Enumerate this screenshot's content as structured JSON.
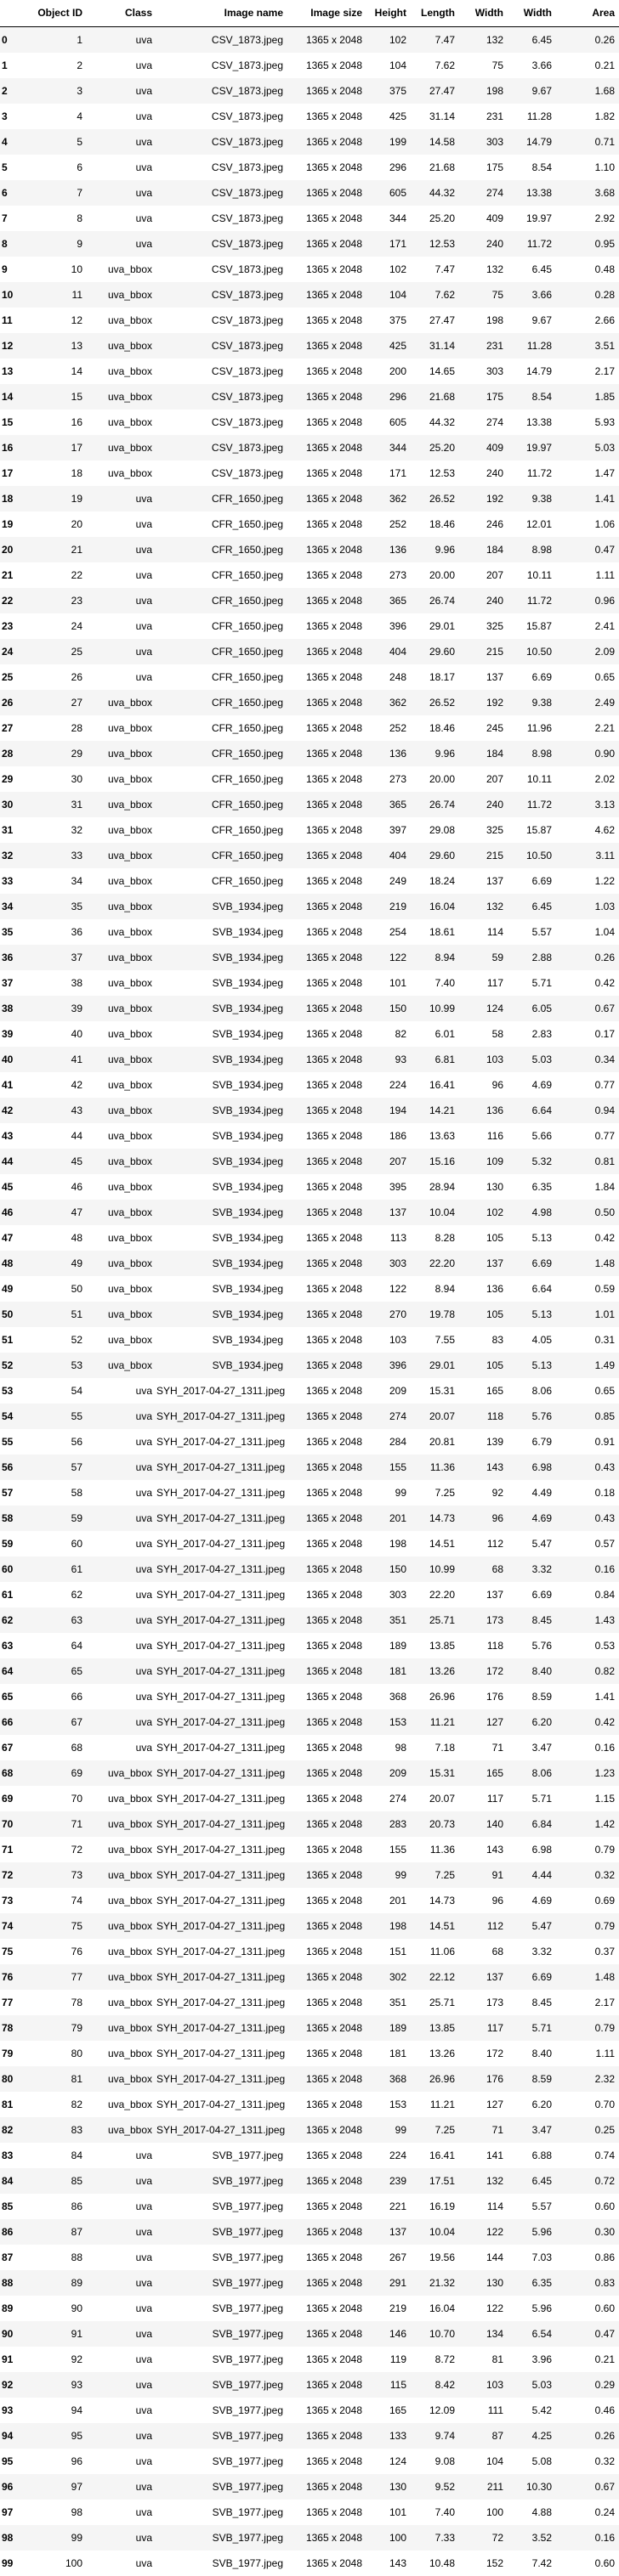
{
  "table": {
    "columns": [
      "",
      "Object ID",
      "Class",
      "Image name",
      "Image size",
      "Height",
      "Length",
      "Width",
      "Width",
      "Area"
    ],
    "rows": [
      [
        "0",
        "1",
        "uva",
        "CSV_1873.jpeg",
        "1365 x 2048",
        "102",
        "7.47",
        "132",
        "6.45",
        "0.26"
      ],
      [
        "1",
        "2",
        "uva",
        "CSV_1873.jpeg",
        "1365 x 2048",
        "104",
        "7.62",
        "75",
        "3.66",
        "0.21"
      ],
      [
        "2",
        "3",
        "uva",
        "CSV_1873.jpeg",
        "1365 x 2048",
        "375",
        "27.47",
        "198",
        "9.67",
        "1.68"
      ],
      [
        "3",
        "4",
        "uva",
        "CSV_1873.jpeg",
        "1365 x 2048",
        "425",
        "31.14",
        "231",
        "11.28",
        "1.82"
      ],
      [
        "4",
        "5",
        "uva",
        "CSV_1873.jpeg",
        "1365 x 2048",
        "199",
        "14.58",
        "303",
        "14.79",
        "0.71"
      ],
      [
        "5",
        "6",
        "uva",
        "CSV_1873.jpeg",
        "1365 x 2048",
        "296",
        "21.68",
        "175",
        "8.54",
        "1.10"
      ],
      [
        "6",
        "7",
        "uva",
        "CSV_1873.jpeg",
        "1365 x 2048",
        "605",
        "44.32",
        "274",
        "13.38",
        "3.68"
      ],
      [
        "7",
        "8",
        "uva",
        "CSV_1873.jpeg",
        "1365 x 2048",
        "344",
        "25.20",
        "409",
        "19.97",
        "2.92"
      ],
      [
        "8",
        "9",
        "uva",
        "CSV_1873.jpeg",
        "1365 x 2048",
        "171",
        "12.53",
        "240",
        "11.72",
        "0.95"
      ],
      [
        "9",
        "10",
        "uva_bbox",
        "CSV_1873.jpeg",
        "1365 x 2048",
        "102",
        "7.47",
        "132",
        "6.45",
        "0.48"
      ],
      [
        "10",
        "11",
        "uva_bbox",
        "CSV_1873.jpeg",
        "1365 x 2048",
        "104",
        "7.62",
        "75",
        "3.66",
        "0.28"
      ],
      [
        "11",
        "12",
        "uva_bbox",
        "CSV_1873.jpeg",
        "1365 x 2048",
        "375",
        "27.47",
        "198",
        "9.67",
        "2.66"
      ],
      [
        "12",
        "13",
        "uva_bbox",
        "CSV_1873.jpeg",
        "1365 x 2048",
        "425",
        "31.14",
        "231",
        "11.28",
        "3.51"
      ],
      [
        "13",
        "14",
        "uva_bbox",
        "CSV_1873.jpeg",
        "1365 x 2048",
        "200",
        "14.65",
        "303",
        "14.79",
        "2.17"
      ],
      [
        "14",
        "15",
        "uva_bbox",
        "CSV_1873.jpeg",
        "1365 x 2048",
        "296",
        "21.68",
        "175",
        "8.54",
        "1.85"
      ],
      [
        "15",
        "16",
        "uva_bbox",
        "CSV_1873.jpeg",
        "1365 x 2048",
        "605",
        "44.32",
        "274",
        "13.38",
        "5.93"
      ],
      [
        "16",
        "17",
        "uva_bbox",
        "CSV_1873.jpeg",
        "1365 x 2048",
        "344",
        "25.20",
        "409",
        "19.97",
        "5.03"
      ],
      [
        "17",
        "18",
        "uva_bbox",
        "CSV_1873.jpeg",
        "1365 x 2048",
        "171",
        "12.53",
        "240",
        "11.72",
        "1.47"
      ],
      [
        "18",
        "19",
        "uva",
        "CFR_1650.jpeg",
        "1365 x 2048",
        "362",
        "26.52",
        "192",
        "9.38",
        "1.41"
      ],
      [
        "19",
        "20",
        "uva",
        "CFR_1650.jpeg",
        "1365 x 2048",
        "252",
        "18.46",
        "246",
        "12.01",
        "1.06"
      ],
      [
        "20",
        "21",
        "uva",
        "CFR_1650.jpeg",
        "1365 x 2048",
        "136",
        "9.96",
        "184",
        "8.98",
        "0.47"
      ],
      [
        "21",
        "22",
        "uva",
        "CFR_1650.jpeg",
        "1365 x 2048",
        "273",
        "20.00",
        "207",
        "10.11",
        "1.11"
      ],
      [
        "22",
        "23",
        "uva",
        "CFR_1650.jpeg",
        "1365 x 2048",
        "365",
        "26.74",
        "240",
        "11.72",
        "0.96"
      ],
      [
        "23",
        "24",
        "uva",
        "CFR_1650.jpeg",
        "1365 x 2048",
        "396",
        "29.01",
        "325",
        "15.87",
        "2.41"
      ],
      [
        "24",
        "25",
        "uva",
        "CFR_1650.jpeg",
        "1365 x 2048",
        "404",
        "29.60",
        "215",
        "10.50",
        "2.09"
      ],
      [
        "25",
        "26",
        "uva",
        "CFR_1650.jpeg",
        "1365 x 2048",
        "248",
        "18.17",
        "137",
        "6.69",
        "0.65"
      ],
      [
        "26",
        "27",
        "uva_bbox",
        "CFR_1650.jpeg",
        "1365 x 2048",
        "362",
        "26.52",
        "192",
        "9.38",
        "2.49"
      ],
      [
        "27",
        "28",
        "uva_bbox",
        "CFR_1650.jpeg",
        "1365 x 2048",
        "252",
        "18.46",
        "245",
        "11.96",
        "2.21"
      ],
      [
        "28",
        "29",
        "uva_bbox",
        "CFR_1650.jpeg",
        "1365 x 2048",
        "136",
        "9.96",
        "184",
        "8.98",
        "0.90"
      ],
      [
        "29",
        "30",
        "uva_bbox",
        "CFR_1650.jpeg",
        "1365 x 2048",
        "273",
        "20.00",
        "207",
        "10.11",
        "2.02"
      ],
      [
        "30",
        "31",
        "uva_bbox",
        "CFR_1650.jpeg",
        "1365 x 2048",
        "365",
        "26.74",
        "240",
        "11.72",
        "3.13"
      ],
      [
        "31",
        "32",
        "uva_bbox",
        "CFR_1650.jpeg",
        "1365 x 2048",
        "397",
        "29.08",
        "325",
        "15.87",
        "4.62"
      ],
      [
        "32",
        "33",
        "uva_bbox",
        "CFR_1650.jpeg",
        "1365 x 2048",
        "404",
        "29.60",
        "215",
        "10.50",
        "3.11"
      ],
      [
        "33",
        "34",
        "uva_bbox",
        "CFR_1650.jpeg",
        "1365 x 2048",
        "249",
        "18.24",
        "137",
        "6.69",
        "1.22"
      ],
      [
        "34",
        "35",
        "uva_bbox",
        "SVB_1934.jpeg",
        "1365 x 2048",
        "219",
        "16.04",
        "132",
        "6.45",
        "1.03"
      ],
      [
        "35",
        "36",
        "uva_bbox",
        "SVB_1934.jpeg",
        "1365 x 2048",
        "254",
        "18.61",
        "114",
        "5.57",
        "1.04"
      ],
      [
        "36",
        "37",
        "uva_bbox",
        "SVB_1934.jpeg",
        "1365 x 2048",
        "122",
        "8.94",
        "59",
        "2.88",
        "0.26"
      ],
      [
        "37",
        "38",
        "uva_bbox",
        "SVB_1934.jpeg",
        "1365 x 2048",
        "101",
        "7.40",
        "117",
        "5.71",
        "0.42"
      ],
      [
        "38",
        "39",
        "uva_bbox",
        "SVB_1934.jpeg",
        "1365 x 2048",
        "150",
        "10.99",
        "124",
        "6.05",
        "0.67"
      ],
      [
        "39",
        "40",
        "uva_bbox",
        "SVB_1934.jpeg",
        "1365 x 2048",
        "82",
        "6.01",
        "58",
        "2.83",
        "0.17"
      ],
      [
        "40",
        "41",
        "uva_bbox",
        "SVB_1934.jpeg",
        "1365 x 2048",
        "93",
        "6.81",
        "103",
        "5.03",
        "0.34"
      ],
      [
        "41",
        "42",
        "uva_bbox",
        "SVB_1934.jpeg",
        "1365 x 2048",
        "224",
        "16.41",
        "96",
        "4.69",
        "0.77"
      ],
      [
        "42",
        "43",
        "uva_bbox",
        "SVB_1934.jpeg",
        "1365 x 2048",
        "194",
        "14.21",
        "136",
        "6.64",
        "0.94"
      ],
      [
        "43",
        "44",
        "uva_bbox",
        "SVB_1934.jpeg",
        "1365 x 2048",
        "186",
        "13.63",
        "116",
        "5.66",
        "0.77"
      ],
      [
        "44",
        "45",
        "uva_bbox",
        "SVB_1934.jpeg",
        "1365 x 2048",
        "207",
        "15.16",
        "109",
        "5.32",
        "0.81"
      ],
      [
        "45",
        "46",
        "uva_bbox",
        "SVB_1934.jpeg",
        "1365 x 2048",
        "395",
        "28.94",
        "130",
        "6.35",
        "1.84"
      ],
      [
        "46",
        "47",
        "uva_bbox",
        "SVB_1934.jpeg",
        "1365 x 2048",
        "137",
        "10.04",
        "102",
        "4.98",
        "0.50"
      ],
      [
        "47",
        "48",
        "uva_bbox",
        "SVB_1934.jpeg",
        "1365 x 2048",
        "113",
        "8.28",
        "105",
        "5.13",
        "0.42"
      ],
      [
        "48",
        "49",
        "uva_bbox",
        "SVB_1934.jpeg",
        "1365 x 2048",
        "303",
        "22.20",
        "137",
        "6.69",
        "1.48"
      ],
      [
        "49",
        "50",
        "uva_bbox",
        "SVB_1934.jpeg",
        "1365 x 2048",
        "122",
        "8.94",
        "136",
        "6.64",
        "0.59"
      ],
      [
        "50",
        "51",
        "uva_bbox",
        "SVB_1934.jpeg",
        "1365 x 2048",
        "270",
        "19.78",
        "105",
        "5.13",
        "1.01"
      ],
      [
        "51",
        "52",
        "uva_bbox",
        "SVB_1934.jpeg",
        "1365 x 2048",
        "103",
        "7.55",
        "83",
        "4.05",
        "0.31"
      ],
      [
        "52",
        "53",
        "uva_bbox",
        "SVB_1934.jpeg",
        "1365 x 2048",
        "396",
        "29.01",
        "105",
        "5.13",
        "1.49"
      ],
      [
        "53",
        "54",
        "uva",
        "SYH_2017-04-27_1311.jpeg",
        "1365 x 2048",
        "209",
        "15.31",
        "165",
        "8.06",
        "0.65"
      ],
      [
        "54",
        "55",
        "uva",
        "SYH_2017-04-27_1311.jpeg",
        "1365 x 2048",
        "274",
        "20.07",
        "118",
        "5.76",
        "0.85"
      ],
      [
        "55",
        "56",
        "uva",
        "SYH_2017-04-27_1311.jpeg",
        "1365 x 2048",
        "284",
        "20.81",
        "139",
        "6.79",
        "0.91"
      ],
      [
        "56",
        "57",
        "uva",
        "SYH_2017-04-27_1311.jpeg",
        "1365 x 2048",
        "155",
        "11.36",
        "143",
        "6.98",
        "0.43"
      ],
      [
        "57",
        "58",
        "uva",
        "SYH_2017-04-27_1311.jpeg",
        "1365 x 2048",
        "99",
        "7.25",
        "92",
        "4.49",
        "0.18"
      ],
      [
        "58",
        "59",
        "uva",
        "SYH_2017-04-27_1311.jpeg",
        "1365 x 2048",
        "201",
        "14.73",
        "96",
        "4.69",
        "0.43"
      ],
      [
        "59",
        "60",
        "uva",
        "SYH_2017-04-27_1311.jpeg",
        "1365 x 2048",
        "198",
        "14.51",
        "112",
        "5.47",
        "0.57"
      ],
      [
        "60",
        "61",
        "uva",
        "SYH_2017-04-27_1311.jpeg",
        "1365 x 2048",
        "150",
        "10.99",
        "68",
        "3.32",
        "0.16"
      ],
      [
        "61",
        "62",
        "uva",
        "SYH_2017-04-27_1311.jpeg",
        "1365 x 2048",
        "303",
        "22.20",
        "137",
        "6.69",
        "0.84"
      ],
      [
        "62",
        "63",
        "uva",
        "SYH_2017-04-27_1311.jpeg",
        "1365 x 2048",
        "351",
        "25.71",
        "173",
        "8.45",
        "1.43"
      ],
      [
        "63",
        "64",
        "uva",
        "SYH_2017-04-27_1311.jpeg",
        "1365 x 2048",
        "189",
        "13.85",
        "118",
        "5.76",
        "0.53"
      ],
      [
        "64",
        "65",
        "uva",
        "SYH_2017-04-27_1311.jpeg",
        "1365 x 2048",
        "181",
        "13.26",
        "172",
        "8.40",
        "0.82"
      ],
      [
        "65",
        "66",
        "uva",
        "SYH_2017-04-27_1311.jpeg",
        "1365 x 2048",
        "368",
        "26.96",
        "176",
        "8.59",
        "1.41"
      ],
      [
        "66",
        "67",
        "uva",
        "SYH_2017-04-27_1311.jpeg",
        "1365 x 2048",
        "153",
        "11.21",
        "127",
        "6.20",
        "0.42"
      ],
      [
        "67",
        "68",
        "uva",
        "SYH_2017-04-27_1311.jpeg",
        "1365 x 2048",
        "98",
        "7.18",
        "71",
        "3.47",
        "0.16"
      ],
      [
        "68",
        "69",
        "uva_bbox",
        "SYH_2017-04-27_1311.jpeg",
        "1365 x 2048",
        "209",
        "15.31",
        "165",
        "8.06",
        "1.23"
      ],
      [
        "69",
        "70",
        "uva_bbox",
        "SYH_2017-04-27_1311.jpeg",
        "1365 x 2048",
        "274",
        "20.07",
        "117",
        "5.71",
        "1.15"
      ],
      [
        "70",
        "71",
        "uva_bbox",
        "SYH_2017-04-27_1311.jpeg",
        "1365 x 2048",
        "283",
        "20.73",
        "140",
        "6.84",
        "1.42"
      ],
      [
        "71",
        "72",
        "uva_bbox",
        "SYH_2017-04-27_1311.jpeg",
        "1365 x 2048",
        "155",
        "11.36",
        "143",
        "6.98",
        "0.79"
      ],
      [
        "72",
        "73",
        "uva_bbox",
        "SYH_2017-04-27_1311.jpeg",
        "1365 x 2048",
        "99",
        "7.25",
        "91",
        "4.44",
        "0.32"
      ],
      [
        "73",
        "74",
        "uva_bbox",
        "SYH_2017-04-27_1311.jpeg",
        "1365 x 2048",
        "201",
        "14.73",
        "96",
        "4.69",
        "0.69"
      ],
      [
        "74",
        "75",
        "uva_bbox",
        "SYH_2017-04-27_1311.jpeg",
        "1365 x 2048",
        "198",
        "14.51",
        "112",
        "5.47",
        "0.79"
      ],
      [
        "75",
        "76",
        "uva_bbox",
        "SYH_2017-04-27_1311.jpeg",
        "1365 x 2048",
        "151",
        "11.06",
        "68",
        "3.32",
        "0.37"
      ],
      [
        "76",
        "77",
        "uva_bbox",
        "SYH_2017-04-27_1311.jpeg",
        "1365 x 2048",
        "302",
        "22.12",
        "137",
        "6.69",
        "1.48"
      ],
      [
        "77",
        "78",
        "uva_bbox",
        "SYH_2017-04-27_1311.jpeg",
        "1365 x 2048",
        "351",
        "25.71",
        "173",
        "8.45",
        "2.17"
      ],
      [
        "78",
        "79",
        "uva_bbox",
        "SYH_2017-04-27_1311.jpeg",
        "1365 x 2048",
        "189",
        "13.85",
        "117",
        "5.71",
        "0.79"
      ],
      [
        "79",
        "80",
        "uva_bbox",
        "SYH_2017-04-27_1311.jpeg",
        "1365 x 2048",
        "181",
        "13.26",
        "172",
        "8.40",
        "1.11"
      ],
      [
        "80",
        "81",
        "uva_bbox",
        "SYH_2017-04-27_1311.jpeg",
        "1365 x 2048",
        "368",
        "26.96",
        "176",
        "8.59",
        "2.32"
      ],
      [
        "81",
        "82",
        "uva_bbox",
        "SYH_2017-04-27_1311.jpeg",
        "1365 x 2048",
        "153",
        "11.21",
        "127",
        "6.20",
        "0.70"
      ],
      [
        "82",
        "83",
        "uva_bbox",
        "SYH_2017-04-27_1311.jpeg",
        "1365 x 2048",
        "99",
        "7.25",
        "71",
        "3.47",
        "0.25"
      ],
      [
        "83",
        "84",
        "uva",
        "SVB_1977.jpeg",
        "1365 x 2048",
        "224",
        "16.41",
        "141",
        "6.88",
        "0.74"
      ],
      [
        "84",
        "85",
        "uva",
        "SVB_1977.jpeg",
        "1365 x 2048",
        "239",
        "17.51",
        "132",
        "6.45",
        "0.72"
      ],
      [
        "85",
        "86",
        "uva",
        "SVB_1977.jpeg",
        "1365 x 2048",
        "221",
        "16.19",
        "114",
        "5.57",
        "0.60"
      ],
      [
        "86",
        "87",
        "uva",
        "SVB_1977.jpeg",
        "1365 x 2048",
        "137",
        "10.04",
        "122",
        "5.96",
        "0.30"
      ],
      [
        "87",
        "88",
        "uva",
        "SVB_1977.jpeg",
        "1365 x 2048",
        "267",
        "19.56",
        "144",
        "7.03",
        "0.86"
      ],
      [
        "88",
        "89",
        "uva",
        "SVB_1977.jpeg",
        "1365 x 2048",
        "291",
        "21.32",
        "130",
        "6.35",
        "0.83"
      ],
      [
        "89",
        "90",
        "uva",
        "SVB_1977.jpeg",
        "1365 x 2048",
        "219",
        "16.04",
        "122",
        "5.96",
        "0.60"
      ],
      [
        "90",
        "91",
        "uva",
        "SVB_1977.jpeg",
        "1365 x 2048",
        "146",
        "10.70",
        "134",
        "6.54",
        "0.47"
      ],
      [
        "91",
        "92",
        "uva",
        "SVB_1977.jpeg",
        "1365 x 2048",
        "119",
        "8.72",
        "81",
        "3.96",
        "0.21"
      ],
      [
        "92",
        "93",
        "uva",
        "SVB_1977.jpeg",
        "1365 x 2048",
        "115",
        "8.42",
        "103",
        "5.03",
        "0.29"
      ],
      [
        "93",
        "94",
        "uva",
        "SVB_1977.jpeg",
        "1365 x 2048",
        "165",
        "12.09",
        "111",
        "5.42",
        "0.46"
      ],
      [
        "94",
        "95",
        "uva",
        "SVB_1977.jpeg",
        "1365 x 2048",
        "133",
        "9.74",
        "87",
        "4.25",
        "0.26"
      ],
      [
        "95",
        "96",
        "uva",
        "SVB_1977.jpeg",
        "1365 x 2048",
        "124",
        "9.08",
        "104",
        "5.08",
        "0.32"
      ],
      [
        "96",
        "97",
        "uva",
        "SVB_1977.jpeg",
        "1365 x 2048",
        "130",
        "9.52",
        "211",
        "10.30",
        "0.67"
      ],
      [
        "97",
        "98",
        "uva",
        "SVB_1977.jpeg",
        "1365 x 2048",
        "101",
        "7.40",
        "100",
        "4.88",
        "0.24"
      ],
      [
        "98",
        "99",
        "uva",
        "SVB_1977.jpeg",
        "1365 x 2048",
        "100",
        "7.33",
        "72",
        "3.52",
        "0.16"
      ],
      [
        "99",
        "100",
        "uva",
        "SVB_1977.jpeg",
        "1365 x 2048",
        "143",
        "10.48",
        "152",
        "7.42",
        "0.60"
      ]
    ]
  }
}
